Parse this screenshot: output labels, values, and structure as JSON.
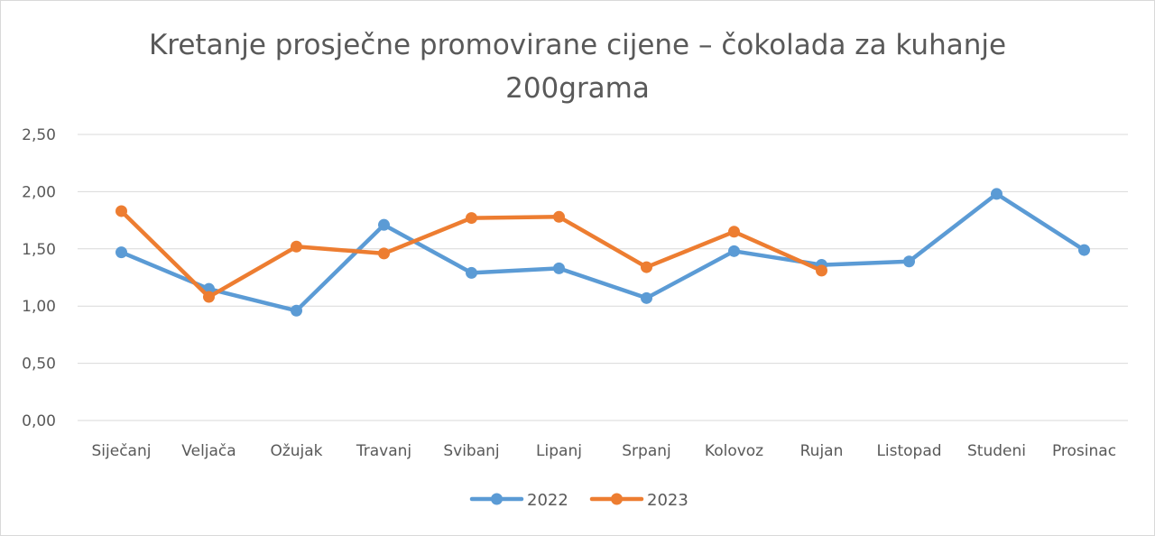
{
  "chart_data": {
    "type": "line",
    "title_line1": "Kretanje prosječne promovirane cijene – čokolada za kuhanje",
    "title_line2": "200grama",
    "xlabel": "",
    "ylabel": "",
    "categories": [
      "Siječanj",
      "Veljača",
      "Ožujak",
      "Travanj",
      "Svibanj",
      "Lipanj",
      "Srpanj",
      "Kolovoz",
      "Rujan",
      "Listopad",
      "Studeni",
      "Prosinac"
    ],
    "ylim": [
      0,
      2.5
    ],
    "yticks": [
      "0,00",
      "0,50",
      "1,00",
      "1,50",
      "2,00",
      "2,50"
    ],
    "grid": true,
    "legend_position": "bottom",
    "series": [
      {
        "name": "2022",
        "color": "#5b9bd5",
        "values": [
          1.47,
          1.15,
          0.96,
          1.71,
          1.29,
          1.33,
          1.07,
          1.48,
          1.36,
          1.39,
          1.98,
          1.49
        ]
      },
      {
        "name": "2023",
        "color": "#ed7d31",
        "values": [
          1.83,
          1.08,
          1.52,
          1.46,
          1.77,
          1.78,
          1.34,
          1.65,
          1.31,
          null,
          null,
          null
        ]
      }
    ]
  }
}
